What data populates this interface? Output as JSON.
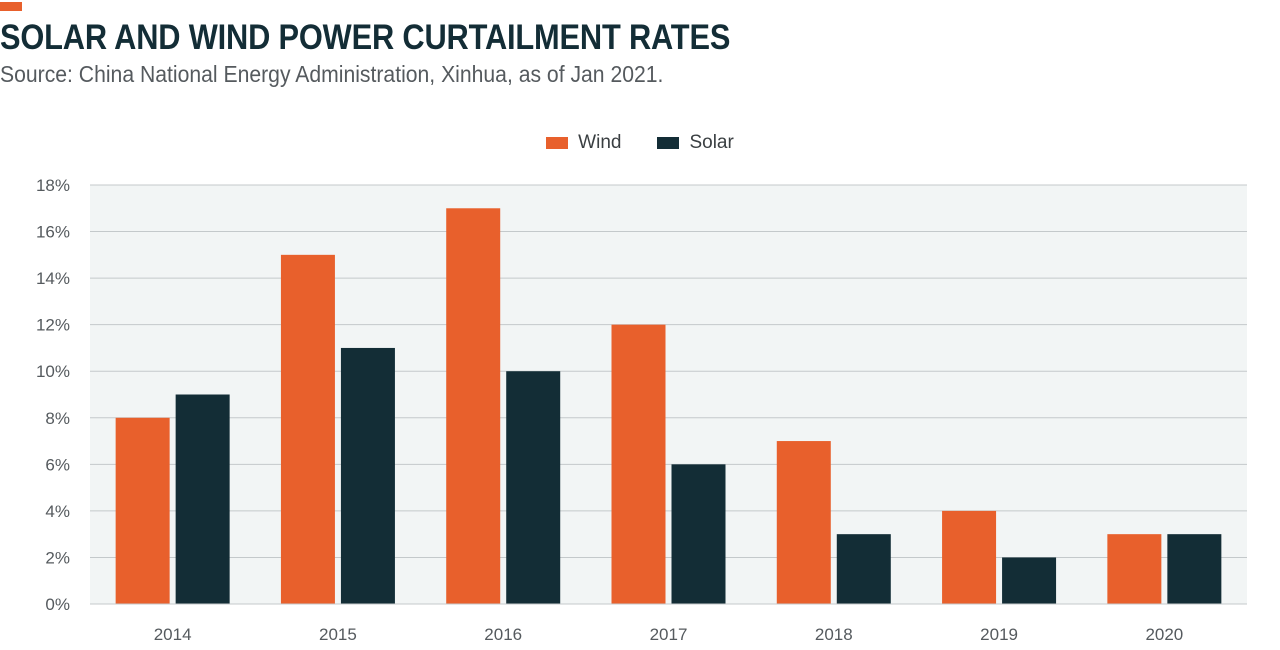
{
  "header": {
    "title": "SOLAR AND WIND POWER CURTAILMENT RATES",
    "subtitle": "Source: China National Energy Administration, Xinhua, as of Jan 2021."
  },
  "colors": {
    "accent": "#E8602C",
    "wind": "#E8602C",
    "solar": "#132D36",
    "plot_background": "#F2F5F5",
    "gridline": "#C4C9CB",
    "title": "#132D36"
  },
  "legend": {
    "wind_label": "Wind",
    "solar_label": "Solar",
    "placement": "top-center"
  },
  "chart_data": {
    "type": "bar",
    "title": "SOLAR AND WIND POWER CURTAILMENT RATES",
    "xlabel": "",
    "ylabel": "",
    "categories": [
      "2014",
      "2015",
      "2016",
      "2017",
      "2018",
      "2019",
      "2020"
    ],
    "series": [
      {
        "name": "Wind",
        "values": [
          8,
          15,
          17,
          12,
          7,
          4,
          3
        ]
      },
      {
        "name": "Solar",
        "values": [
          9,
          11,
          10,
          6,
          3,
          2,
          3
        ]
      }
    ],
    "ylim": [
      0,
      18
    ],
    "yticks": [
      0,
      2,
      4,
      6,
      8,
      10,
      12,
      14,
      16,
      18
    ],
    "ytick_labels": [
      "0%",
      "2%",
      "4%",
      "6%",
      "8%",
      "10%",
      "12%",
      "14%",
      "16%",
      "18%"
    ],
    "grid": true,
    "legend_placement": "top-center"
  }
}
